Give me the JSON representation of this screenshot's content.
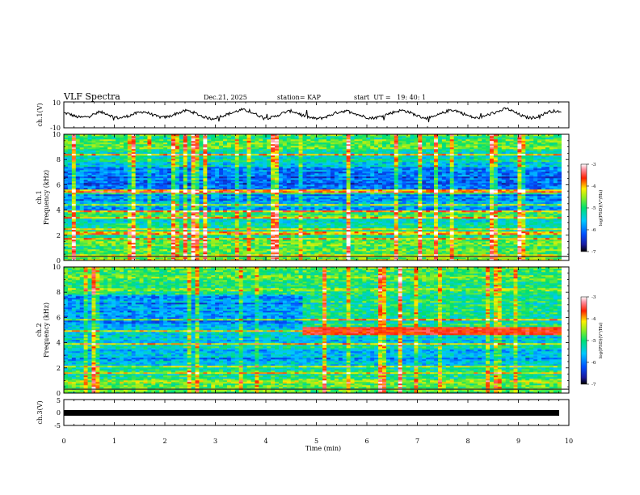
{
  "header": {
    "title": "VLF Spectra",
    "date": "Dec.21, 2025",
    "station": "station= KAP",
    "start": "start  UT =   19: 40: 1"
  },
  "chart_data": [
    {
      "type": "line",
      "name": "ch1-waveform",
      "ylabel": "ch.1(V)",
      "ylim": [
        -10,
        10
      ],
      "yticks": [
        "10",
        "-10"
      ],
      "xlim": [
        0,
        10
      ],
      "color": "#000000",
      "description_values": "oscillating trace centered near 0 V, amplitude roughly -5 to +6 V with spikes",
      "y": [
        1.5,
        0.5,
        -1.5,
        -2,
        -1,
        0.5,
        2,
        1,
        -1.5,
        -2.5,
        -1.5,
        0,
        1.5,
        2.5,
        1,
        -1,
        -2,
        -1.5,
        0.5,
        2,
        3.5,
        2,
        0,
        -2,
        -3,
        -2,
        -0.5,
        1,
        2.5,
        4,
        3,
        1,
        -1,
        -2.5,
        -2,
        0,
        2,
        3,
        1.5,
        -0.5,
        -2,
        -3,
        -2.5,
        -1,
        1,
        2.5,
        3,
        2,
        0,
        -1.5,
        -2.5,
        -2,
        -0.5,
        1,
        2.5,
        3.5,
        2.5,
        0.5,
        -1.5,
        -2.5,
        -2,
        0,
        2,
        4,
        3,
        1,
        -1,
        -2.5,
        -2,
        0,
        1.5,
        3,
        5,
        3,
        0.5,
        -1.5,
        -2.5,
        -1.5,
        0.5,
        2.5,
        3,
        1.5
      ]
    },
    {
      "type": "heatmap",
      "name": "ch1-spectrogram",
      "ylabel": "ch.1\nFrequency (kHz)",
      "ylim": [
        0,
        10
      ],
      "yticks": [
        "0",
        "2",
        "4",
        "6",
        "8",
        "10"
      ],
      "xlim": [
        0,
        10
      ],
      "colorbar": {
        "label": "log(PSD)(V²/Hz)",
        "range": [
          -7,
          -3
        ],
        "ticks": [
          "-3",
          "-4",
          "-5",
          "-6",
          "-7"
        ]
      },
      "bands": [
        {
          "fmin": 0.0,
          "fmax": 1.0,
          "level": -4.6
        },
        {
          "fmin": 1.0,
          "fmax": 2.0,
          "level": -4.9
        },
        {
          "fmin": 2.0,
          "fmax": 2.3,
          "level": -4.2
        },
        {
          "fmin": 2.3,
          "fmax": 3.3,
          "level": -5.4
        },
        {
          "fmin": 3.3,
          "fmax": 4.0,
          "level": -5.0
        },
        {
          "fmin": 4.0,
          "fmax": 5.2,
          "level": -5.8
        },
        {
          "fmin": 5.2,
          "fmax": 5.6,
          "level": -4.9
        },
        {
          "fmin": 5.6,
          "fmax": 7.4,
          "level": -6.1
        },
        {
          "fmin": 7.4,
          "fmax": 8.6,
          "level": -5.3
        },
        {
          "fmin": 8.6,
          "fmax": 10.0,
          "level": -4.9
        }
      ]
    },
    {
      "type": "heatmap",
      "name": "ch2-spectrogram",
      "ylabel": "ch.2\nFrequency (kHz)",
      "ylim": [
        0,
        10
      ],
      "yticks": [
        "0",
        "2",
        "4",
        "6",
        "8",
        "10"
      ],
      "xlim": [
        0,
        10
      ],
      "colorbar": {
        "label": "log(PSD)(V²/Hz)",
        "range": [
          -7,
          -3
        ],
        "ticks": [
          "-3",
          "-4",
          "-5",
          "-6",
          "-7"
        ]
      },
      "bands": [
        {
          "fmin": 0.0,
          "fmax": 1.0,
          "level": -4.7
        },
        {
          "fmin": 1.0,
          "fmax": 2.0,
          "level": -5.0
        },
        {
          "fmin": 2.0,
          "fmax": 2.2,
          "level": -4.3
        },
        {
          "fmin": 2.2,
          "fmax": 3.4,
          "level": -5.7
        },
        {
          "fmin": 3.4,
          "fmax": 4.0,
          "level": -5.1
        },
        {
          "fmin": 4.0,
          "fmax": 5.4,
          "level": -5.5
        },
        {
          "fmin": 5.4,
          "fmax": 7.8,
          "level": -5.8
        },
        {
          "fmin": 7.8,
          "fmax": 10.0,
          "level": -4.8
        }
      ],
      "features": [
        {
          "label": "emission band",
          "tmin": 4.7,
          "tmax": 9.9,
          "fmin": 4.6,
          "fmax": 5.3,
          "level": -3.6
        }
      ]
    },
    {
      "type": "line",
      "name": "ch3-waveform",
      "ylabel": "ch.3(V)",
      "ylim": [
        -5,
        5
      ],
      "yticks": [
        "5",
        "0",
        "-5"
      ],
      "xlim": [
        0,
        10
      ],
      "xlabel": "Time (min)",
      "xticks": [
        "0",
        "1",
        "2",
        "3",
        "4",
        "5",
        "6",
        "7",
        "8",
        "9",
        "10"
      ],
      "color": "#000000",
      "y_constant": 0
    }
  ]
}
